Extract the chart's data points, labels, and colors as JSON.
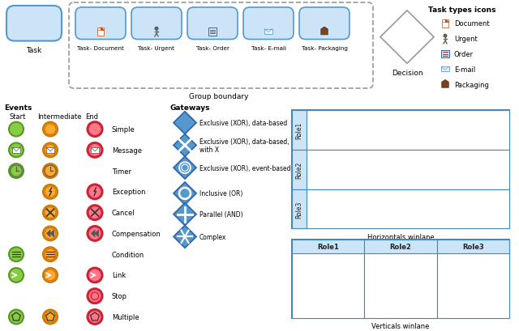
{
  "bg_color": "#ffffff",
  "task_box_color": "#cce4f7",
  "task_box_edge": "#5599cc",
  "group_boundary_color": "#999999",
  "swimlane_header_fill": "#cce4f7",
  "swimlane_edge": "#4488bb",
  "gateway_fill": "#5599cc",
  "gateway_edge": "#3366aa",
  "event_start_fc": "#88cc44",
  "event_start_ec": "#559922",
  "event_inter_fc": "#ffaa33",
  "event_inter_ec": "#cc7700",
  "event_end_fc": "#ff7788",
  "event_end_ec": "#cc2233",
  "title_task_types": "Task types icons",
  "task_labels_group": [
    "Task- Document",
    "Task- Urgent",
    "Task- Order",
    "Task- E-mail",
    "Task- Packaging"
  ],
  "icon_legend": [
    "Document",
    "Urgent",
    "Order",
    "E-mail",
    "Packaging"
  ],
  "horiz_lane_label": "Horizontals winlane",
  "vert_lane_label": "Verticals winlane",
  "role_labels": [
    "Role1",
    "Role2",
    "Role3"
  ]
}
